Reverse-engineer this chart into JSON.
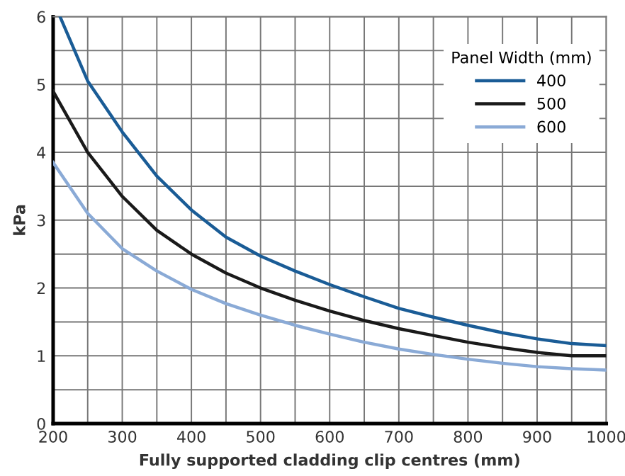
{
  "chart_data": {
    "type": "line",
    "xlabel": "Fully supported cladding clip centres (mm)",
    "ylabel": "kPa",
    "legend_title": "Panel Width (mm)",
    "legend": "top right",
    "grid": true,
    "marker": "none",
    "line_style": "solid",
    "x": [
      200,
      250,
      300,
      350,
      400,
      450,
      500,
      550,
      600,
      650,
      700,
      750,
      800,
      850,
      900,
      950,
      1000
    ],
    "series": [
      {
        "name": "400",
        "color": "#1a5c96",
        "x": [
          210,
          250,
          300,
          350,
          400,
          450,
          500,
          550,
          600,
          650,
          700,
          750,
          800,
          850,
          900,
          950,
          1000
        ],
        "values": [
          6.0,
          5.05,
          4.3,
          3.65,
          3.15,
          2.75,
          2.47,
          2.25,
          2.05,
          1.87,
          1.7,
          1.57,
          1.45,
          1.34,
          1.25,
          1.18,
          1.15
        ]
      },
      {
        "name": "500",
        "color": "#1a1a1a",
        "values": [
          4.9,
          4.0,
          3.35,
          2.85,
          2.5,
          2.22,
          2.0,
          1.82,
          1.66,
          1.52,
          1.4,
          1.3,
          1.2,
          1.12,
          1.05,
          1.0,
          1.0
        ]
      },
      {
        "name": "600",
        "color": "#8aaad6",
        "values": [
          3.85,
          3.1,
          2.58,
          2.25,
          1.98,
          1.77,
          1.6,
          1.45,
          1.32,
          1.2,
          1.1,
          1.02,
          0.95,
          0.89,
          0.84,
          0.81,
          0.79
        ]
      }
    ],
    "xlim": [
      200,
      1000
    ],
    "ylim": [
      0,
      6
    ],
    "xticks": [
      200,
      {
        "value": 250,
        "label": null
      },
      300,
      {
        "value": 350,
        "label": null
      },
      400,
      {
        "value": 450,
        "label": null
      },
      500,
      {
        "value": 550,
        "label": null
      },
      600,
      {
        "value": 650,
        "label": null
      },
      700,
      {
        "value": 750,
        "label": null
      },
      800,
      {
        "value": 850,
        "label": null
      },
      900,
      {
        "value": 950,
        "label": null
      },
      1000
    ],
    "yticks": [
      0,
      {
        "value": 0.5,
        "label": null
      },
      1,
      {
        "value": 1.5,
        "label": null
      },
      2,
      {
        "value": 2.5,
        "label": null
      },
      3,
      {
        "value": 3.5,
        "label": null
      },
      4,
      {
        "value": 4.5,
        "label": null
      },
      5,
      {
        "value": 5.5,
        "label": null
      },
      6
    ]
  }
}
